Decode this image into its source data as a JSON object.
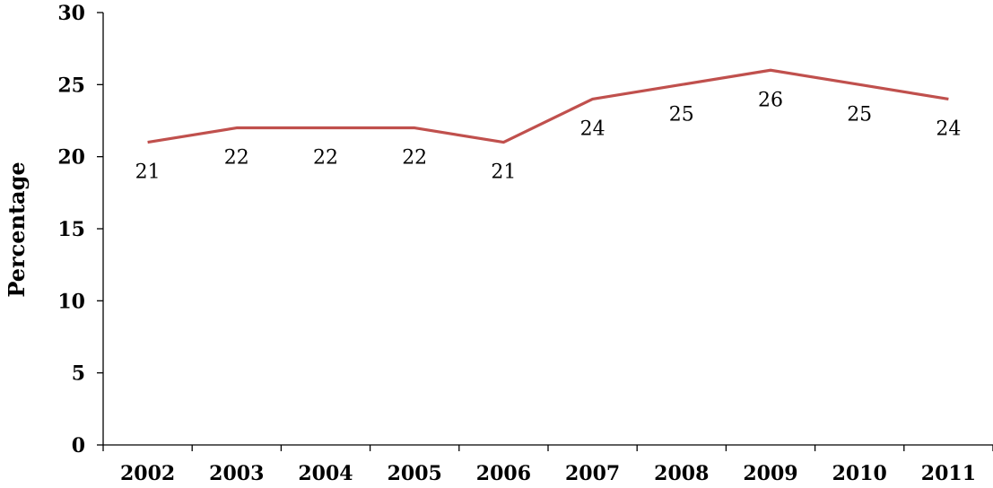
{
  "chart_data": {
    "type": "line",
    "categories": [
      "2002",
      "2003",
      "2004",
      "2005",
      "2006",
      "2007",
      "2008",
      "2009",
      "2010",
      "2011"
    ],
    "series": [
      {
        "values": [
          21,
          22,
          22,
          22,
          21,
          24,
          25,
          26,
          25,
          24
        ],
        "color": "#c0504d"
      }
    ],
    "data_labels": [
      "21",
      "22",
      "22",
      "22",
      "21",
      "24",
      "25",
      "26",
      "25",
      "24"
    ],
    "ylabel": "Percentage",
    "xlabel": "",
    "title": "",
    "ylim": [
      0,
      30
    ],
    "yticks": [
      "0",
      "5",
      "10",
      "15",
      "20",
      "25",
      "30"
    ],
    "grid": false,
    "legend": "none"
  }
}
